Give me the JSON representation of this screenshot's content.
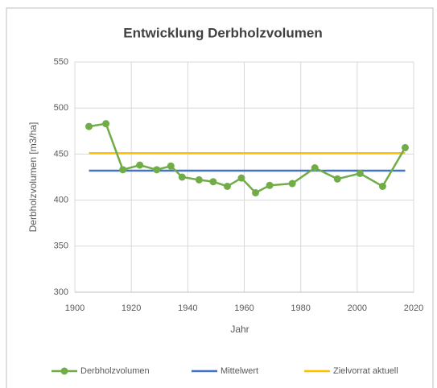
{
  "chart_data": {
    "type": "line",
    "title": "Entwicklung Derbholzvolumen",
    "x_label": "Jahr",
    "y_label": "Derbholzvolumen [m3/ha]",
    "xlim": [
      1900,
      2020
    ],
    "xticks": [
      1900,
      1920,
      1940,
      1960,
      1980,
      2000,
      2020
    ],
    "ylim": [
      300,
      550
    ],
    "yticks": [
      300,
      350,
      400,
      450,
      500,
      550
    ],
    "grid": true,
    "legend": "bottom",
    "series": [
      {
        "name": "Derbholzvolumen",
        "color": "#70ad47",
        "markers": true,
        "x": [
          1905,
          1911,
          1917,
          1923,
          1929,
          1934,
          1938,
          1944,
          1949,
          1954,
          1959,
          1964,
          1969,
          1977,
          1985,
          1993,
          2001,
          2009,
          2017
        ],
        "values": [
          480,
          483,
          433,
          438,
          433,
          437,
          425,
          422,
          420,
          415,
          424,
          408,
          416,
          418,
          435,
          423,
          429,
          415,
          457
        ]
      },
      {
        "name": "Mittelwert",
        "color": "#4472c4",
        "markers": false,
        "x": [
          1905,
          2017
        ],
        "values": [
          432,
          432
        ]
      },
      {
        "name": "Zielvorrat aktuell",
        "color": "#ffc000",
        "markers": false,
        "x": [
          1905,
          2017
        ],
        "values": [
          451,
          451
        ]
      }
    ]
  }
}
